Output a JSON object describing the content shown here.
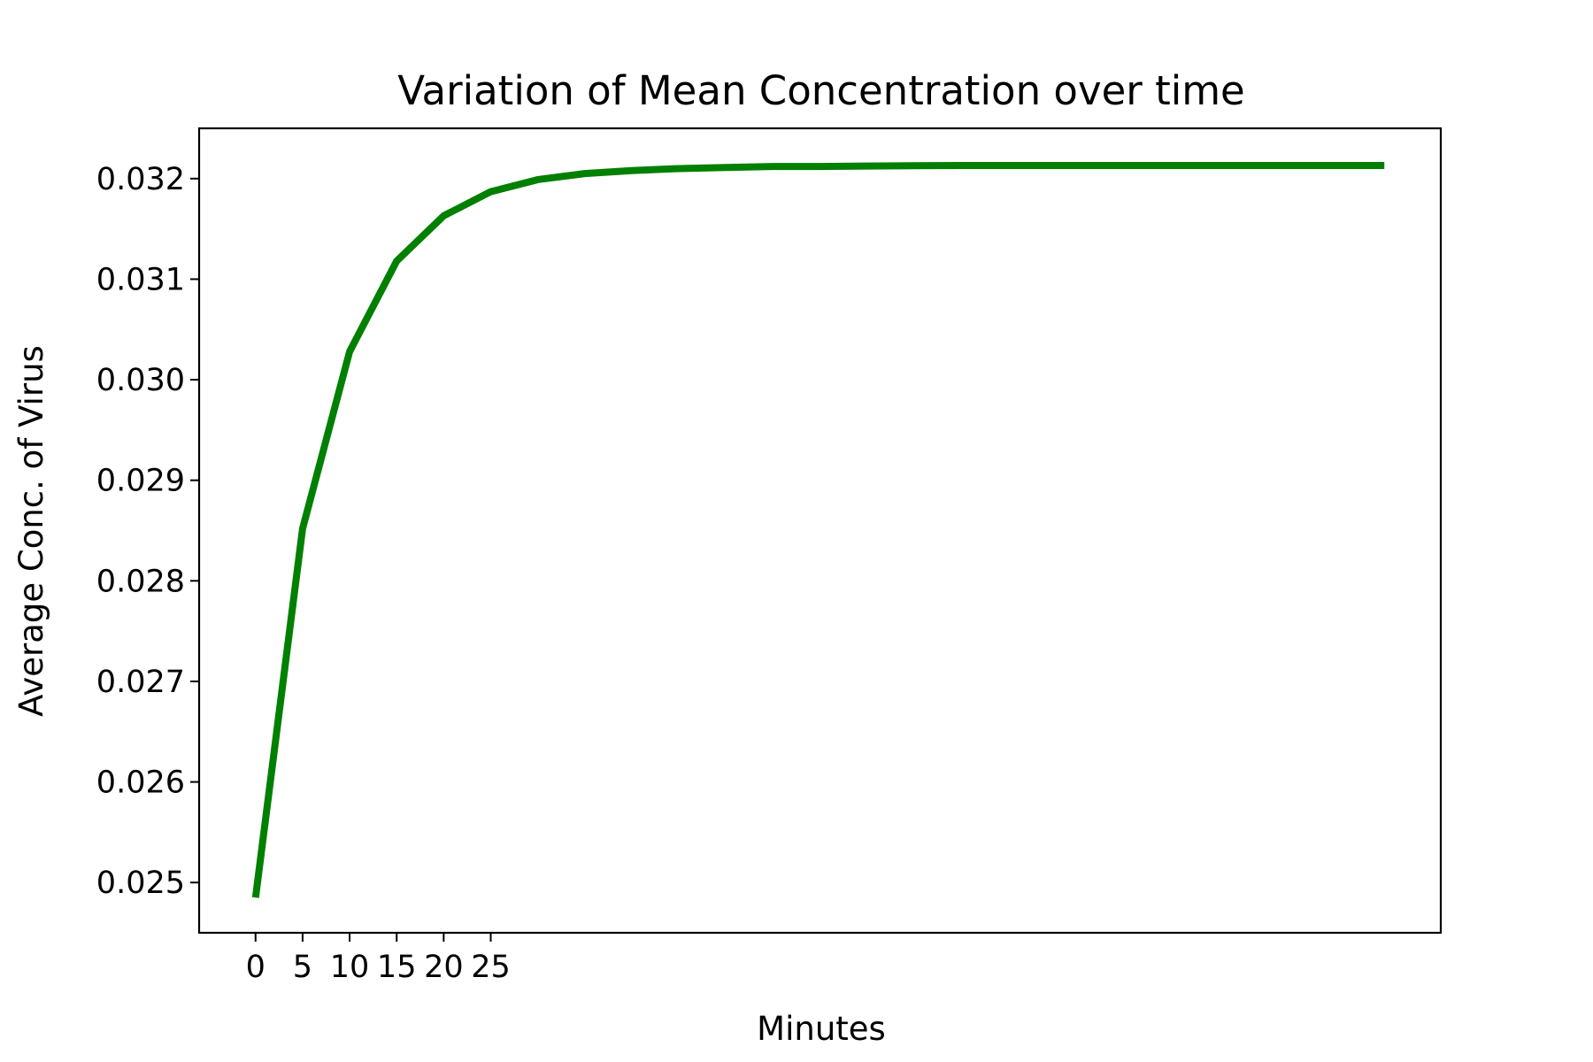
{
  "chart_data": {
    "type": "line",
    "title": "Variation of Mean Concentration over time",
    "xlabel": "Minutes",
    "ylabel": "Average Conc. of Virus",
    "xlim": [
      -6,
      126
    ],
    "ylim": [
      0.0245,
      0.0325
    ],
    "x_ticks": [
      0,
      5,
      10,
      15,
      20,
      25
    ],
    "x_tick_labels": [
      "0",
      "5",
      "10",
      "15",
      "20",
      "25"
    ],
    "y_ticks": [
      0.025,
      0.026,
      0.027,
      0.028,
      0.029,
      0.03,
      0.031,
      0.032
    ],
    "y_tick_labels": [
      "0.025",
      "0.026",
      "0.027",
      "0.028",
      "0.029",
      "0.030",
      "0.031",
      "0.032"
    ],
    "grid": false,
    "legend": "none",
    "series": [
      {
        "color": "#008000",
        "x": [
          0,
          5,
          10,
          15,
          20,
          25,
          30,
          35,
          40,
          45,
          50,
          55,
          60,
          65,
          70,
          75,
          80,
          85,
          90,
          95,
          100,
          105,
          110,
          115,
          120
        ],
        "y": [
          0.02485,
          0.02852,
          0.03028,
          0.03118,
          0.03163,
          0.03187,
          0.03199,
          0.03205,
          0.03208,
          0.0321,
          0.03211,
          0.03212,
          0.03212,
          0.032125,
          0.032128,
          0.03213,
          0.03213,
          0.03213,
          0.03213,
          0.03213,
          0.03213,
          0.03213,
          0.03213,
          0.03213,
          0.03213
        ]
      }
    ]
  }
}
